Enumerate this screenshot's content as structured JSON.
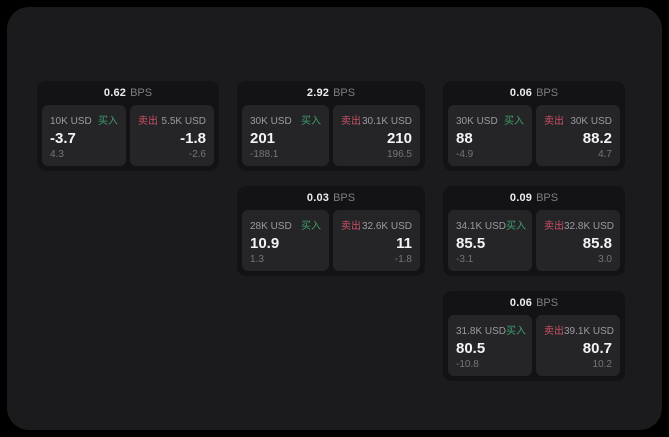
{
  "colors": {
    "surface": "#1b1b1d",
    "card": "#131315",
    "tile": "#252528",
    "buy": "#3f9e6a",
    "sell": "#c95064"
  },
  "labels": {
    "buy": "买入",
    "sell": "卖出",
    "unit": "BPS"
  },
  "cards": [
    {
      "bps": "0.62",
      "buy": {
        "notional": "10K USD",
        "price": "-3.7",
        "delta": "4.3"
      },
      "sell": {
        "notional": "5.5K USD",
        "price": "-1.8",
        "delta": "-2.6"
      }
    },
    {
      "bps": "2.92",
      "buy": {
        "notional": "30K USD",
        "price": "201",
        "delta": "-188.1"
      },
      "sell": {
        "notional": "30.1K USD",
        "price": "210",
        "delta": "196.5"
      }
    },
    {
      "bps": "0.06",
      "buy": {
        "notional": "30K USD",
        "price": "88",
        "delta": "-4.9"
      },
      "sell": {
        "notional": "30K USD",
        "price": "88.2",
        "delta": "4.7"
      }
    },
    {
      "bps": "0.03",
      "buy": {
        "notional": "28K USD",
        "price": "10.9",
        "delta": "1.3"
      },
      "sell": {
        "notional": "32.6K USD",
        "price": "11",
        "delta": "-1.8"
      }
    },
    {
      "bps": "0.09",
      "buy": {
        "notional": "34.1K USD",
        "price": "85.5",
        "delta": "-3.1"
      },
      "sell": {
        "notional": "32.8K USD",
        "price": "85.8",
        "delta": "3.0"
      }
    },
    {
      "bps": "0.06",
      "buy": {
        "notional": "31.8K USD",
        "price": "80.5",
        "delta": "-10.8"
      },
      "sell": {
        "notional": "39.1K USD",
        "price": "80.7",
        "delta": "10.2"
      }
    }
  ]
}
